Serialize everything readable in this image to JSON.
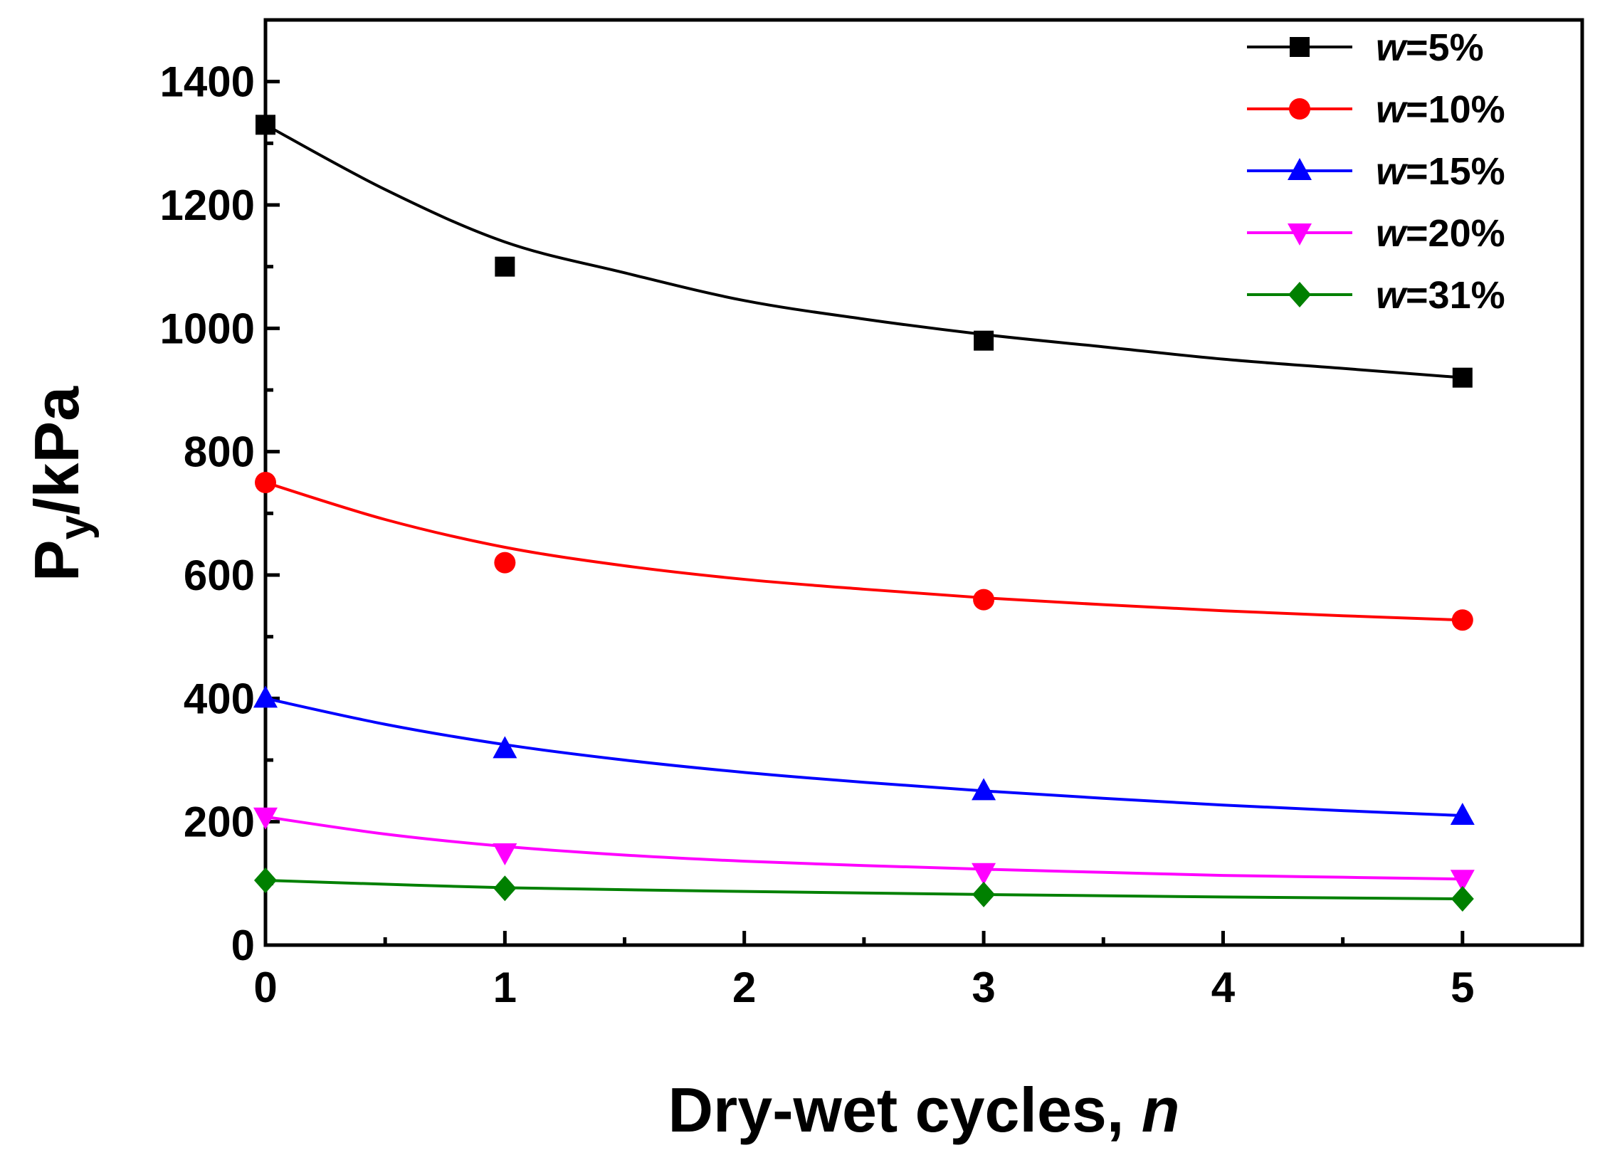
{
  "chart_data": {
    "type": "line",
    "title": "",
    "xlabel": "Dry-wet cycles, ",
    "xlabel_italic": "n",
    "ylabel_main": "P",
    "ylabel_sub": "y",
    "ylabel_rest": "/kPa",
    "xlim": [
      0,
      5.5
    ],
    "ylim": [
      0,
      1500
    ],
    "x_ticks": [
      "0",
      "1",
      "2",
      "3",
      "4",
      "5"
    ],
    "y_ticks": [
      "0",
      "200",
      "400",
      "600",
      "800",
      "1000",
      "1200",
      "1400"
    ],
    "grid": false,
    "legend_position": "top-right",
    "series": [
      {
        "name": "w=5%",
        "label_var": "w",
        "label_val": "=5%",
        "color": "#000000",
        "marker": "square",
        "x": [
          0,
          1,
          3,
          5
        ],
        "values": [
          1330,
          1100,
          980,
          920
        ],
        "fit": [
          [
            0,
            1330
          ],
          [
            0.5,
            1225
          ],
          [
            1,
            1140
          ],
          [
            1.5,
            1090
          ],
          [
            2,
            1045
          ],
          [
            2.5,
            1015
          ],
          [
            3,
            990
          ],
          [
            3.5,
            970
          ],
          [
            4,
            950
          ],
          [
            4.5,
            935
          ],
          [
            5,
            920
          ]
        ]
      },
      {
        "name": "w=10%",
        "label_var": "w",
        "label_val": "=10%",
        "color": "#ff0000",
        "marker": "circle",
        "x": [
          0,
          1,
          3,
          5
        ],
        "values": [
          750,
          620,
          560,
          527
        ],
        "fit": [
          [
            0,
            750
          ],
          [
            0.5,
            690
          ],
          [
            1,
            645
          ],
          [
            1.5,
            615
          ],
          [
            2,
            593
          ],
          [
            2.5,
            577
          ],
          [
            3,
            563
          ],
          [
            3.5,
            552
          ],
          [
            4,
            542
          ],
          [
            4.5,
            534
          ],
          [
            5,
            527
          ]
        ]
      },
      {
        "name": "w=15%",
        "label_var": "w",
        "label_val": "=15%",
        "color": "#0000ff",
        "marker": "triangle-up",
        "x": [
          0,
          1,
          3,
          5
        ],
        "values": [
          400,
          318,
          250,
          210
        ],
        "fit": [
          [
            0,
            400
          ],
          [
            0.5,
            358
          ],
          [
            1,
            325
          ],
          [
            1.5,
            300
          ],
          [
            2,
            280
          ],
          [
            2.5,
            264
          ],
          [
            3,
            250
          ],
          [
            3.5,
            238
          ],
          [
            4,
            227
          ],
          [
            4.5,
            218
          ],
          [
            5,
            210
          ]
        ]
      },
      {
        "name": "w=20%",
        "label_var": "w",
        "label_val": "=20%",
        "color": "#ff00ff",
        "marker": "triangle-down",
        "x": [
          0,
          1,
          3,
          5
        ],
        "values": [
          208,
          150,
          118,
          107
        ],
        "fit": [
          [
            0,
            208
          ],
          [
            0.5,
            180
          ],
          [
            1,
            160
          ],
          [
            1.5,
            146
          ],
          [
            2,
            136
          ],
          [
            2.5,
            129
          ],
          [
            3,
            123
          ],
          [
            3.5,
            118
          ],
          [
            4,
            113
          ],
          [
            4.5,
            110
          ],
          [
            5,
            107
          ]
        ]
      },
      {
        "name": "w=31%",
        "label_var": "w",
        "label_val": "=31%",
        "color": "#008000",
        "marker": "diamond",
        "x": [
          0,
          1,
          3,
          5
        ],
        "values": [
          105,
          92,
          82,
          75
        ],
        "fit": [
          [
            0,
            105
          ],
          [
            1,
            93
          ],
          [
            2,
            87
          ],
          [
            3,
            82
          ],
          [
            4,
            78
          ],
          [
            5,
            75
          ]
        ]
      }
    ]
  }
}
